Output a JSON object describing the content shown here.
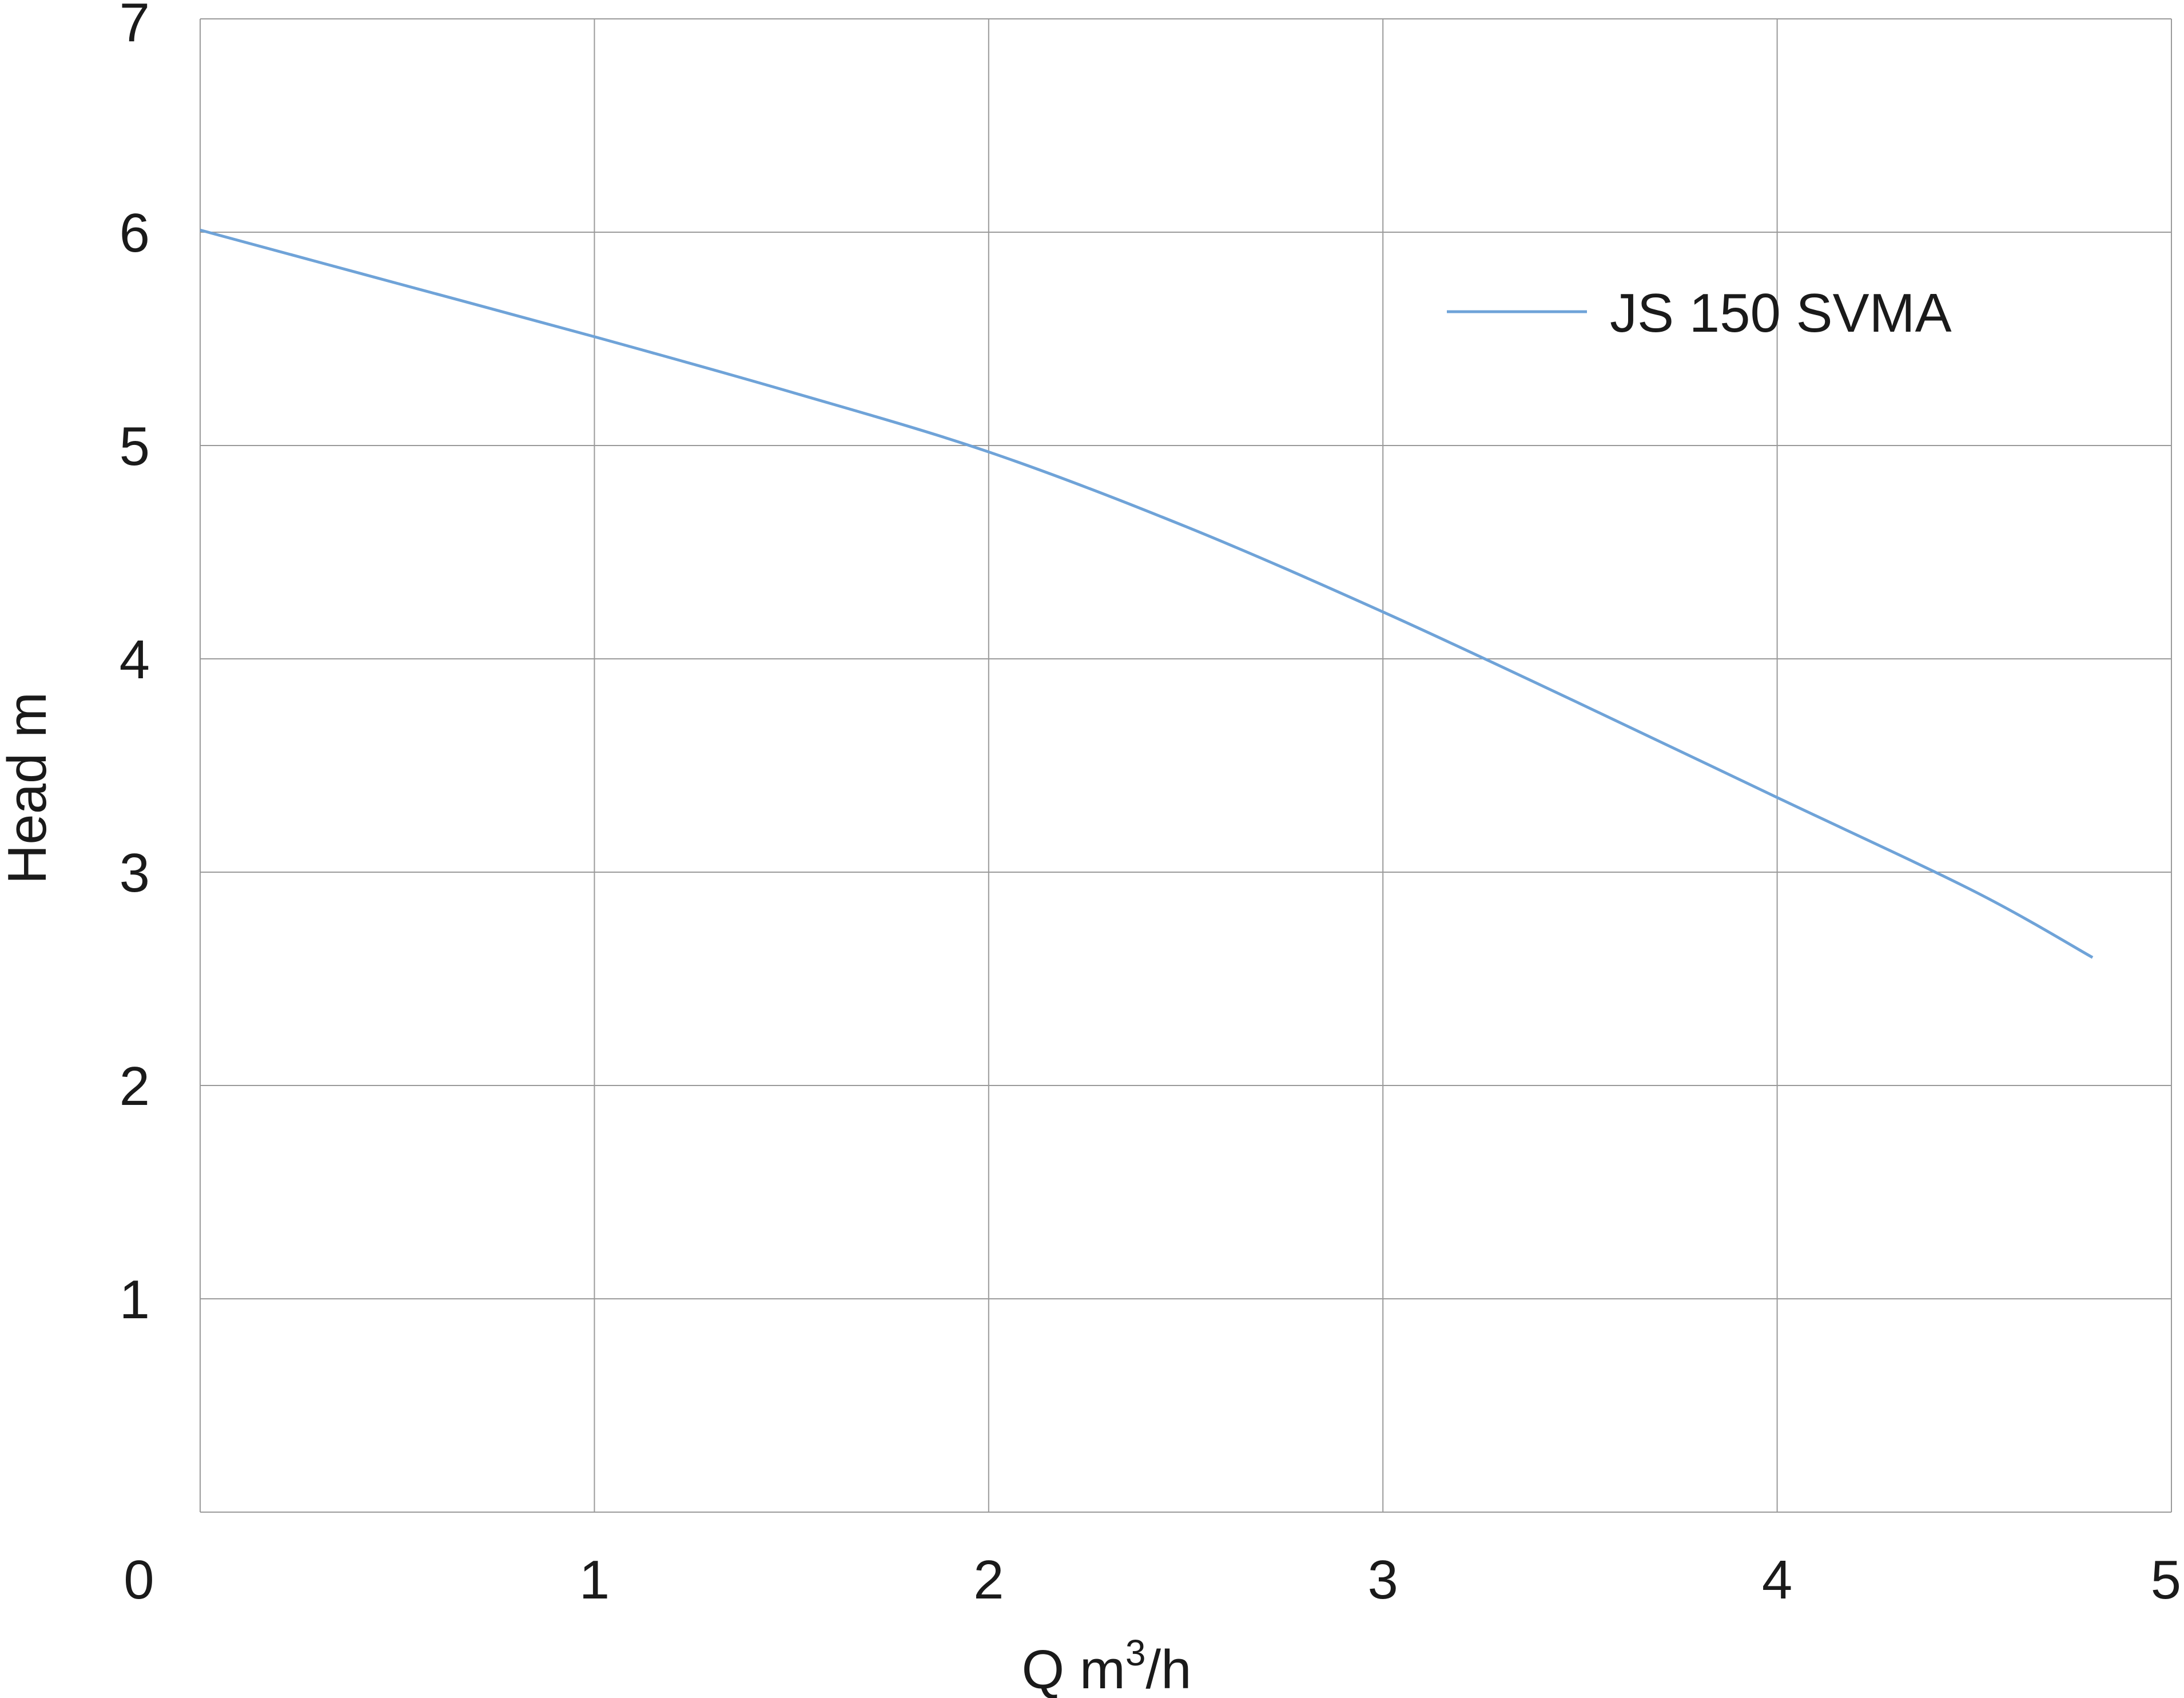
{
  "chart_data": {
    "type": "line",
    "xlabel": "Q m",
    "xlabel_sup": "3",
    "xlabel_suffix": "/h",
    "ylabel": "Head m",
    "xlim": [
      0,
      5
    ],
    "ylim": [
      0,
      7
    ],
    "x_ticks": [
      0,
      1,
      2,
      3,
      4,
      5
    ],
    "y_ticks": [
      1,
      2,
      3,
      4,
      5,
      6,
      7
    ],
    "grid": true,
    "legend_position": "top-right",
    "series": [
      {
        "name": "JS 150 SVMA",
        "color": "#6fa3d8",
        "x": [
          0,
          0.5,
          1.0,
          1.5,
          2.0,
          2.5,
          3.0,
          3.5,
          4.0,
          4.5,
          4.8
        ],
        "y": [
          6.01,
          5.76,
          5.51,
          5.25,
          4.97,
          4.62,
          4.22,
          3.79,
          3.35,
          2.91,
          2.6
        ]
      }
    ],
    "colors": {
      "grid": "#9a9a9a",
      "text": "#1a1a1a"
    }
  }
}
